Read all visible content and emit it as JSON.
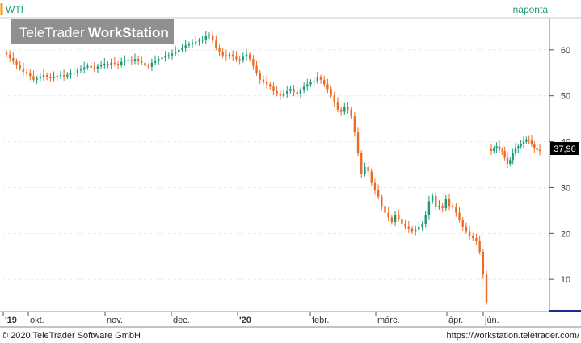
{
  "header": {
    "instrument": "WTI",
    "interval": "naponta",
    "watermark_brand_light": "TeleTrader",
    "watermark_brand_bold": "WorkStation"
  },
  "footer": {
    "copyright": "© 2020 TeleTrader Software GmbH",
    "url": "https://workstation.teletrader.com/"
  },
  "colors": {
    "up": "#1a9a7a",
    "down": "#ee6a22",
    "axis": "#bbbbbb",
    "accent": "#ff9900",
    "last_label_bg": "#000000",
    "bottom_line": "#1a2a99"
  },
  "chart_data": {
    "type": "candlestick",
    "title": "WTI",
    "ylim": [
      3,
      67
    ],
    "yticks": [
      10,
      20,
      30,
      40,
      50,
      60
    ],
    "x_labels": [
      "'19",
      "okt.",
      "nov.",
      "dec.",
      "'20",
      "febr.",
      "márc.",
      "ápr.",
      "jún."
    ],
    "last_value": "37,96",
    "grid": true,
    "close_series": [
      59.0,
      58.2,
      57.5,
      56.8,
      56.0,
      55.2,
      55.0,
      54.3,
      53.5,
      53.8,
      54.2,
      54.5,
      54.0,
      53.8,
      54.1,
      54.3,
      54.5,
      54.2,
      54.6,
      54.8,
      55.0,
      55.5,
      55.7,
      56.2,
      56.5,
      56.1,
      55.8,
      56.4,
      56.7,
      57.0,
      56.6,
      57.2,
      57.0,
      56.8,
      57.4,
      57.6,
      57.8,
      57.5,
      58.0,
      57.6,
      57.2,
      56.5,
      56.3,
      57.2,
      57.6,
      58.0,
      58.3,
      58.6,
      58.8,
      59.2,
      59.6,
      60.0,
      60.4,
      61.0,
      61.2,
      61.5,
      61.8,
      62.0,
      62.2,
      63.0,
      63.2,
      62.0,
      60.5,
      59.5,
      58.8,
      58.6,
      59.0,
      58.5,
      58.0,
      57.8,
      58.5,
      59.0,
      58.0,
      56.5,
      55.0,
      53.5,
      53.0,
      52.5,
      52.0,
      51.0,
      50.5,
      50.0,
      50.5,
      51.0,
      51.5,
      50.8,
      50.3,
      51.2,
      52.0,
      52.5,
      53.0,
      53.2,
      54.0,
      53.5,
      52.5,
      51.5,
      50.0,
      48.5,
      47.0,
      46.5,
      47.5,
      47.0,
      45.5,
      42.0,
      37.5,
      33.0,
      34.5,
      33.5,
      31.0,
      29.5,
      28.0,
      26.0,
      24.5,
      23.5,
      22.5,
      24.0,
      23.2,
      22.0,
      21.5,
      21.0,
      20.5,
      20.8,
      21.5,
      22.0,
      24.0,
      27.0,
      28.2,
      25.8,
      26.0,
      25.5,
      27.5,
      26.0,
      25.8,
      24.5,
      23.0,
      21.5,
      20.5,
      19.5,
      19.0,
      18.3,
      16.0,
      11.0,
      5.0,
      38.0,
      38.5,
      39.0,
      38.2,
      38.0,
      36.5,
      35.2,
      36.0,
      37.5,
      38.5,
      39.0,
      39.5,
      40.0,
      40.5,
      40.3,
      39.5,
      38.5,
      38.2,
      37.96
    ]
  }
}
